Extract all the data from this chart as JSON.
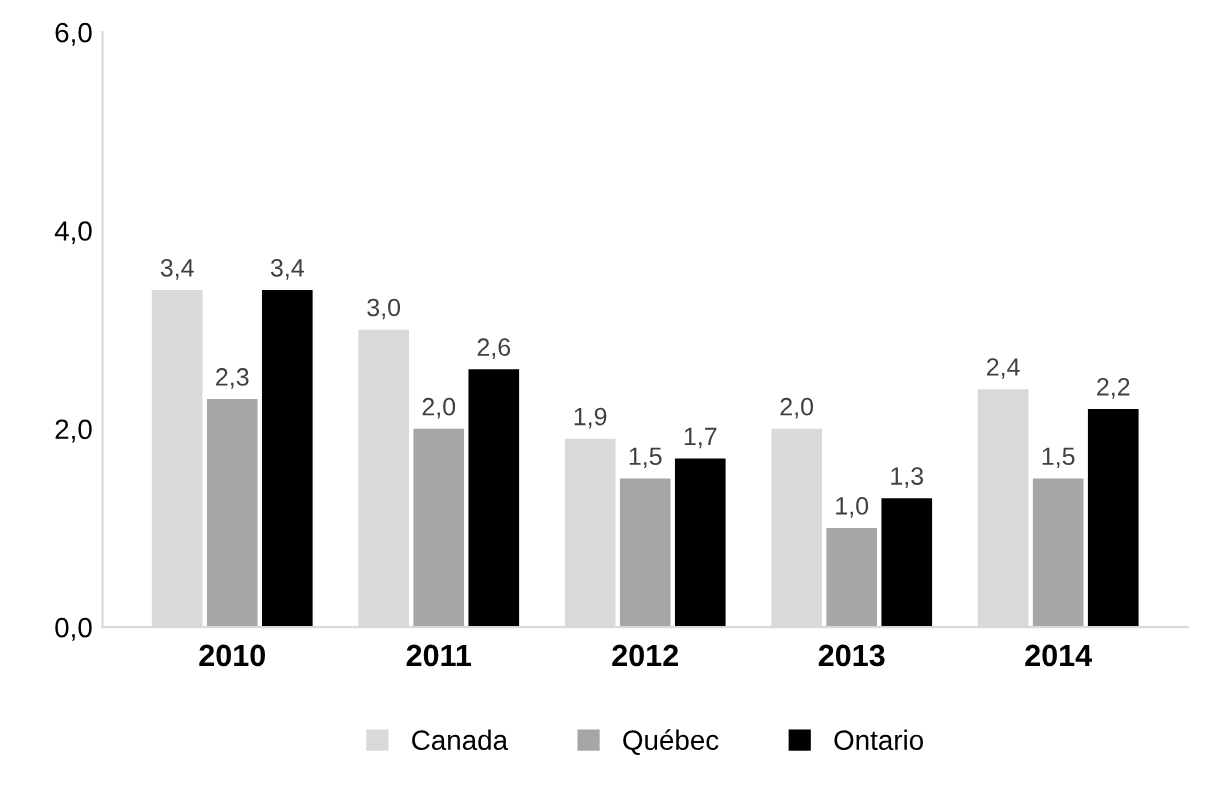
{
  "chart_data": {
    "type": "bar",
    "categories": [
      "2010",
      "2011",
      "2012",
      "2013",
      "2014"
    ],
    "series": [
      {
        "name": "Canada",
        "color": "#d9d9d9",
        "values": [
          3.4,
          3.0,
          1.9,
          2.0,
          2.4
        ],
        "value_labels": [
          "3,4",
          "3,0",
          "1,9",
          "2,0",
          "2,4"
        ]
      },
      {
        "name": "Québec",
        "color": "#a6a6a6",
        "values": [
          2.3,
          2.0,
          1.5,
          1.0,
          1.5
        ],
        "value_labels": [
          "2,3",
          "2,0",
          "1,5",
          "1,0",
          "1,5"
        ]
      },
      {
        "name": "Ontario",
        "color": "#000000",
        "values": [
          3.4,
          2.6,
          1.7,
          1.3,
          2.2
        ],
        "value_labels": [
          "3,4",
          "2,6",
          "1,7",
          "1,3",
          "2,2"
        ]
      }
    ],
    "ylim": [
      0,
      6
    ],
    "yticks": [
      {
        "value": 0,
        "label": "0,0"
      },
      {
        "value": 2,
        "label": "2,0"
      },
      {
        "value": 4,
        "label": "4,0"
      },
      {
        "value": 6,
        "label": "6,0"
      }
    ],
    "grid": false,
    "legend": "bottom"
  }
}
